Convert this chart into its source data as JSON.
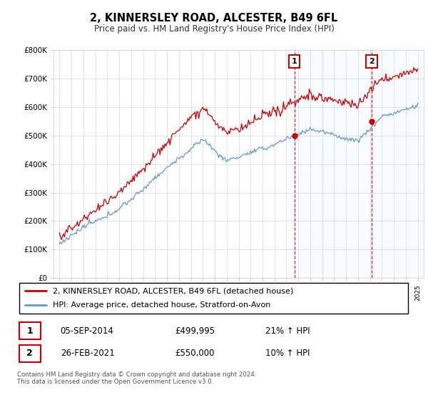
{
  "title": "2, KINNERSLEY ROAD, ALCESTER, B49 6FL",
  "subtitle": "Price paid vs. HM Land Registry's House Price Index (HPI)",
  "legend_line1": "2, KINNERSLEY ROAD, ALCESTER, B49 6FL (detached house)",
  "legend_line2": "HPI: Average price, detached house, Stratford-on-Avon",
  "footer": "Contains HM Land Registry data © Crown copyright and database right 2024.\nThis data is licensed under the Open Government Licence v3.0.",
  "sale1_date": "05-SEP-2014",
  "sale1_price": "£499,995",
  "sale1_hpi": "21% ↑ HPI",
  "sale2_date": "26-FEB-2021",
  "sale2_price": "£550,000",
  "sale2_hpi": "10% ↑ HPI",
  "sale1_year": 2014.67,
  "sale1_value": 499995,
  "sale2_year": 2021.15,
  "sale2_value": 550000,
  "hpi_color": "#6699cc",
  "price_color": "#cc0000",
  "vline_color": "#cc0000",
  "highlight_color": "#ddeeff",
  "ylim_max": 800000,
  "xlim_start": 1994.5,
  "xlim_end": 2025.5,
  "background_color": "#ffffff",
  "grid_color": "#cccccc"
}
